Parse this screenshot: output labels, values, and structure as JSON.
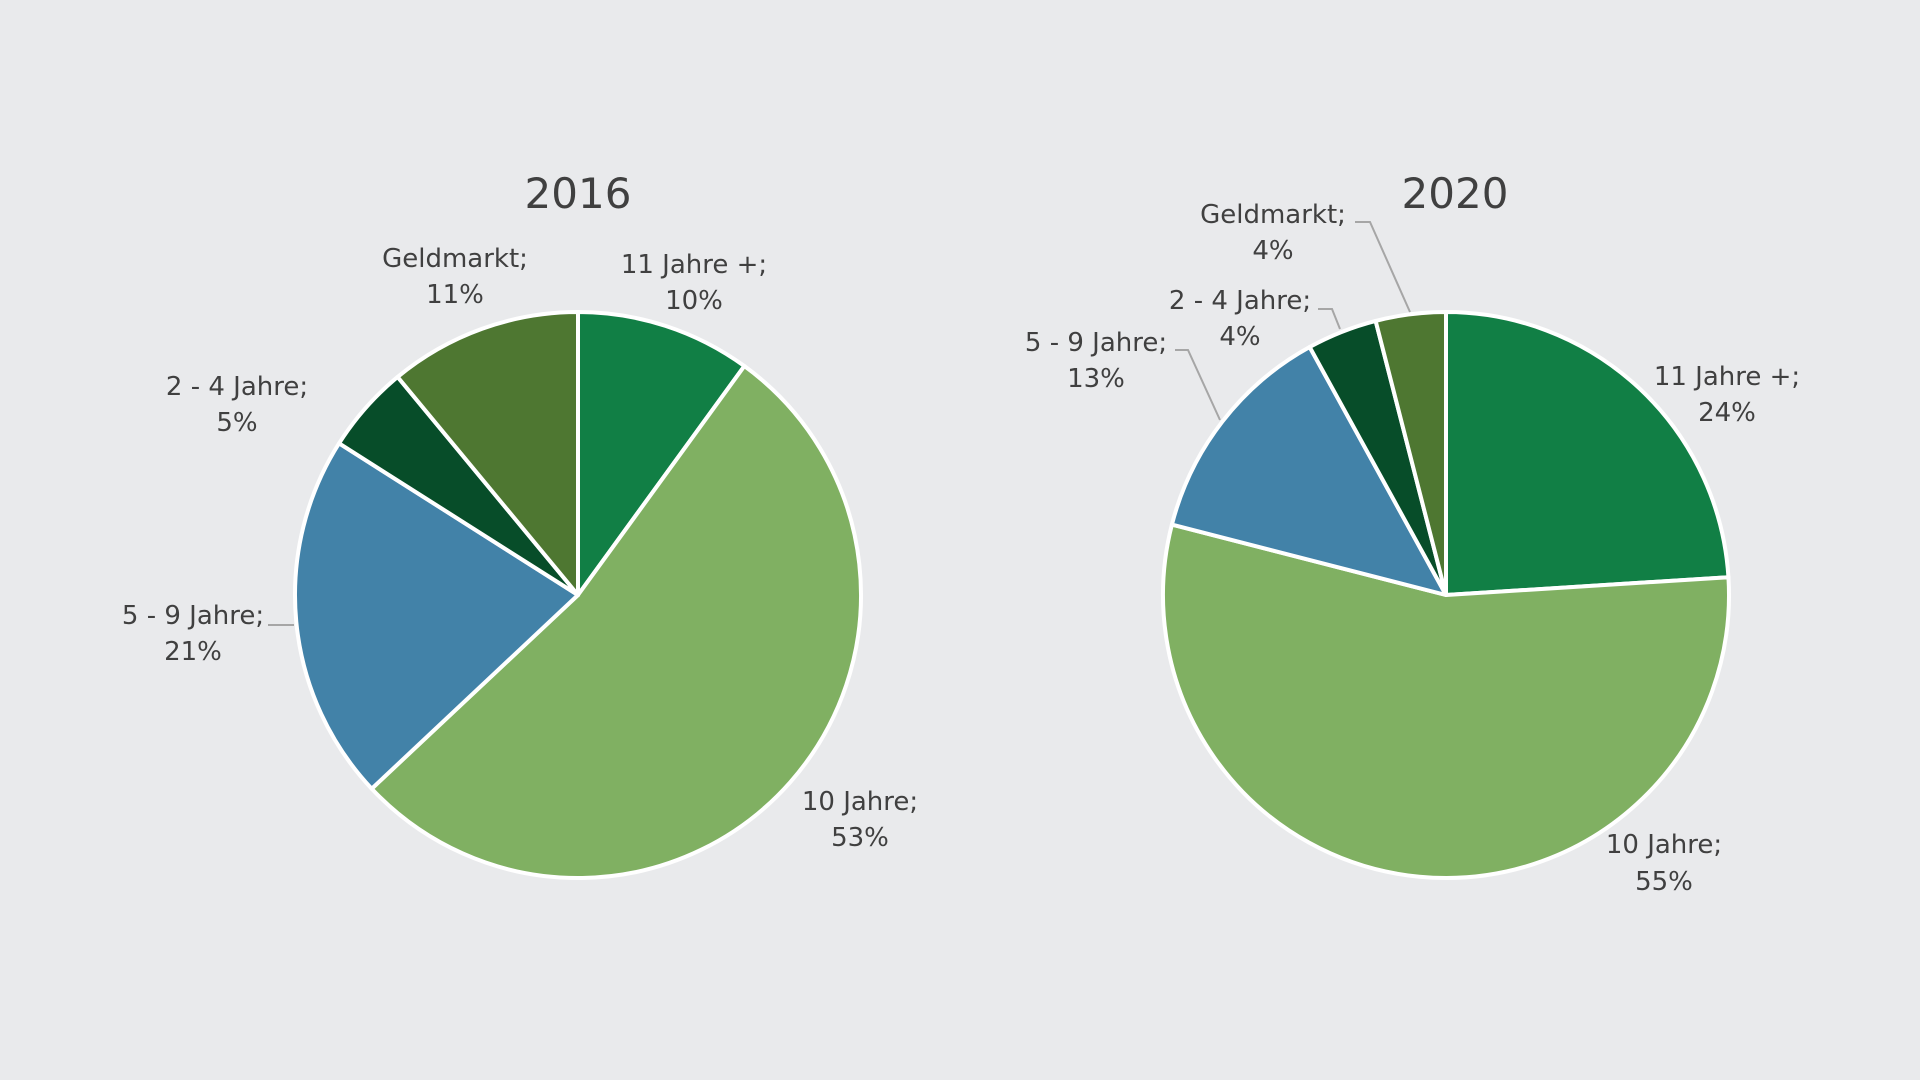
{
  "chart_data": [
    {
      "type": "pie",
      "title": "2016",
      "start": "12 o'clock",
      "direction": "clockwise",
      "slices": [
        {
          "name": "11 Jahre +",
          "value": 10,
          "label": "10%",
          "color": "#117f45"
        },
        {
          "name": "10 Jahre",
          "value": 53,
          "label": "53%",
          "color": "#80b062"
        },
        {
          "name": "5 - 9 Jahre",
          "value": 21,
          "label": "21%",
          "color": "#4282a8"
        },
        {
          "name": "2 - 4 Jahre",
          "value": 5,
          "label": "5%",
          "color": "#074d29"
        },
        {
          "name": "Geldmarkt",
          "value": 11,
          "label": "11%",
          "color": "#4e7731"
        }
      ]
    },
    {
      "type": "pie",
      "title": "2020",
      "start": "12 o'clock",
      "direction": "clockwise",
      "slices": [
        {
          "name": "11 Jahre +",
          "value": 24,
          "label": "24%",
          "color": "#117f45"
        },
        {
          "name": "10 Jahre",
          "value": 55,
          "label": "55%",
          "color": "#80b062"
        },
        {
          "name": "5 - 9 Jahre",
          "value": 13,
          "label": "13%",
          "color": "#4282a8"
        },
        {
          "name": "2 - 4 Jahre",
          "value": 4,
          "label": "4%",
          "color": "#074d29"
        },
        {
          "name": "Geldmarkt",
          "value": 4,
          "label": "4%",
          "color": "#4e7731"
        }
      ]
    }
  ]
}
